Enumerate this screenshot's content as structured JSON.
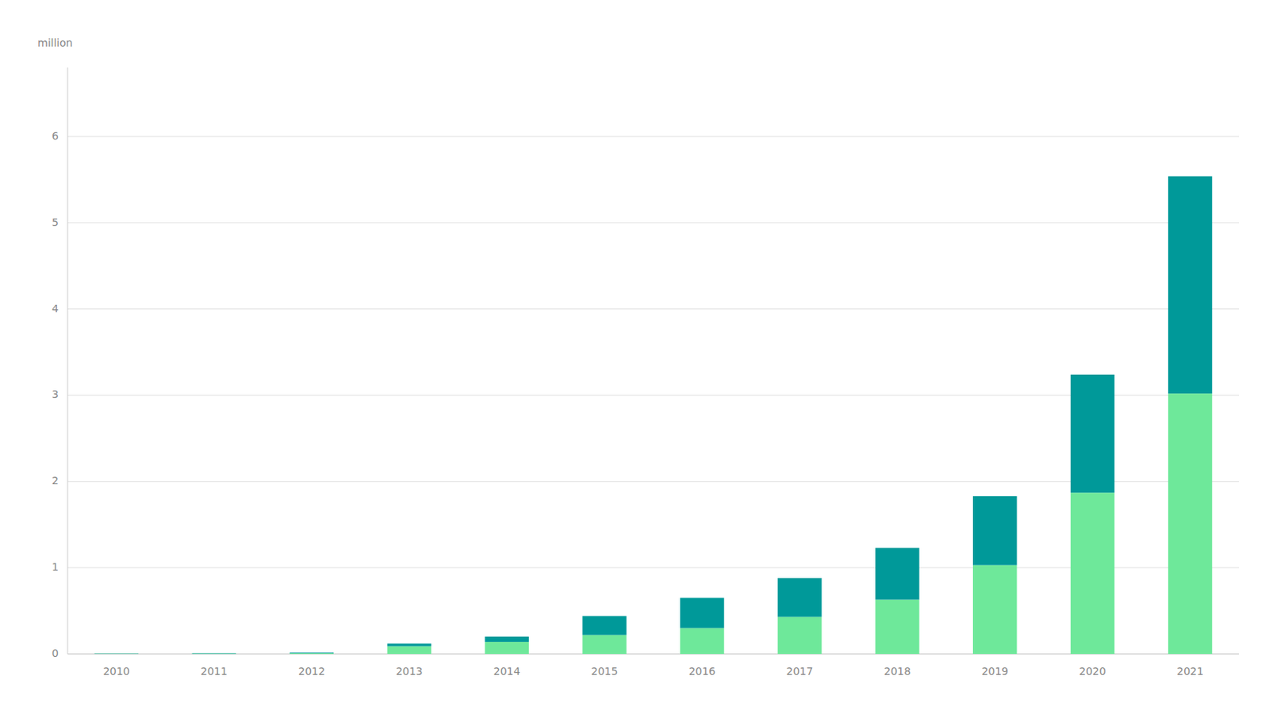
{
  "chart_data": {
    "type": "bar",
    "stacked": true,
    "ylabel": "million",
    "categories": [
      "2010",
      "2011",
      "2012",
      "2013",
      "2014",
      "2015",
      "2016",
      "2017",
      "2018",
      "2019",
      "2020",
      "2021"
    ],
    "series": [
      {
        "color": "#6EE89A",
        "values": [
          0.003,
          0.005,
          0.008,
          0.09,
          0.14,
          0.22,
          0.3,
          0.43,
          0.63,
          1.03,
          1.87,
          3.02
        ]
      },
      {
        "color": "#009999",
        "values": [
          0.003,
          0.005,
          0.007,
          0.03,
          0.06,
          0.22,
          0.35,
          0.45,
          0.6,
          0.8,
          1.37,
          2.52
        ]
      }
    ],
    "ylim": [
      0,
      6.8
    ],
    "yticks": [
      0,
      1,
      2,
      3,
      4,
      5,
      6
    ],
    "grid": true
  }
}
